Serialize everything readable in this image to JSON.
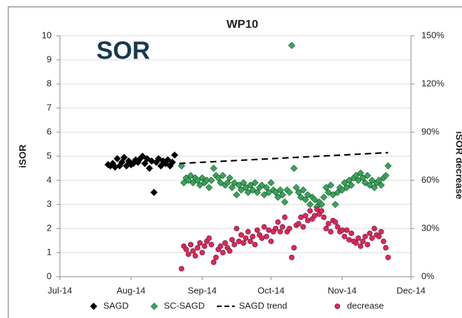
{
  "chart_data": {
    "type": "scatter",
    "title": "WP10",
    "annotation": "SOR",
    "y_label": "iSOR",
    "y2_label": "iSOR decrease",
    "xlim": [
      0,
      153
    ],
    "xticks": [
      {
        "value": 0,
        "label": "Jul-14"
      },
      {
        "value": 31,
        "label": "Aug-14"
      },
      {
        "value": 62,
        "label": "Sep-14"
      },
      {
        "value": 92,
        "label": "Oct-14"
      },
      {
        "value": 123,
        "label": "Nov-14"
      },
      {
        "value": 153,
        "label": "Dec-14"
      }
    ],
    "ylim": [
      0,
      10
    ],
    "yticks": [
      0,
      1,
      2,
      3,
      4,
      5,
      6,
      7,
      8,
      9,
      10
    ],
    "y2lim": [
      0,
      150
    ],
    "y2ticks": [
      {
        "value": 0,
        "label": "0%"
      },
      {
        "value": 30,
        "label": "30%"
      },
      {
        "value": 60,
        "label": "60%"
      },
      {
        "value": 90,
        "label": "90%"
      },
      {
        "value": 120,
        "label": "120%"
      },
      {
        "value": 150,
        "label": "150%"
      }
    ],
    "grid": true,
    "legend": "bottom",
    "series": [
      {
        "name": "SAGD",
        "color": "#000000",
        "marker": "diamond",
        "x": [
          21,
          22,
          23,
          24,
          25,
          26,
          27,
          28,
          29,
          30,
          31,
          32,
          33,
          34,
          35,
          36,
          37,
          38,
          39,
          40,
          41,
          42,
          43,
          44,
          45,
          46,
          47,
          48,
          49,
          50
        ],
        "values": [
          4.65,
          4.6,
          4.7,
          4.55,
          4.9,
          4.6,
          4.75,
          4.95,
          4.6,
          4.8,
          4.65,
          4.7,
          4.85,
          4.75,
          4.9,
          5.0,
          4.7,
          4.9,
          4.5,
          4.8,
          3.5,
          4.75,
          4.9,
          4.6,
          4.8,
          4.7,
          4.85,
          4.6,
          4.75,
          5.05
        ]
      },
      {
        "name": "SC-SAGD",
        "color": "#3aa35a",
        "marker": "diamond",
        "x": [
          53,
          54,
          55,
          56,
          57,
          58,
          59,
          60,
          61,
          62,
          63,
          64,
          65,
          66,
          67,
          68,
          69,
          70,
          71,
          72,
          73,
          74,
          75,
          76,
          77,
          78,
          79,
          80,
          81,
          82,
          83,
          84,
          85,
          86,
          87,
          88,
          89,
          90,
          91,
          92,
          93,
          94,
          95,
          96,
          97,
          98,
          99,
          100,
          101,
          102,
          103,
          104,
          105,
          106,
          107,
          108,
          109,
          110,
          111,
          112,
          113,
          114,
          115,
          116,
          117,
          118,
          119,
          120,
          121,
          122,
          123,
          124,
          125,
          126,
          127,
          128,
          129,
          130,
          131,
          132,
          133,
          134,
          135,
          136,
          137,
          138,
          139,
          140,
          141,
          142,
          143
        ],
        "values": [
          4.6,
          3.9,
          4.1,
          4.0,
          4.2,
          3.9,
          4.1,
          4.0,
          3.8,
          4.1,
          3.9,
          4.0,
          3.7,
          4.0,
          4.5,
          4.2,
          4.1,
          3.9,
          4.2,
          3.8,
          3.9,
          4.1,
          3.7,
          3.9,
          3.4,
          3.8,
          3.6,
          3.9,
          3.7,
          3.5,
          3.8,
          3.6,
          3.9,
          3.5,
          3.7,
          3.8,
          3.4,
          3.7,
          3.5,
          3.9,
          3.6,
          3.5,
          3.3,
          3.6,
          3.4,
          3.1,
          3.6,
          3.5,
          9.6,
          4.5,
          3.7,
          3.5,
          3.3,
          3.6,
          3.2,
          3.4,
          3.0,
          3.3,
          3.2,
          2.9,
          3.1,
          3.0,
          3.3,
          3.7,
          3.5,
          3.8,
          3.4,
          3.0,
          3.5,
          3.7,
          3.6,
          3.9,
          3.7,
          4.0,
          3.8,
          4.1,
          4.2,
          4.0,
          4.3,
          4.1,
          3.9,
          4.2,
          3.8,
          4.0,
          3.7,
          3.9,
          4.0,
          3.8,
          4.1,
          4.2,
          4.6
        ]
      },
      {
        "name": "SAGD trend",
        "color": "#000000",
        "marker": "dash",
        "x": [
          52,
          143
        ],
        "values": [
          4.7,
          5.15
        ]
      },
      {
        "name": "decrease",
        "color": "#e0284c",
        "marker": "circle",
        "axis": "y2",
        "x": [
          53,
          54,
          55,
          56,
          57,
          58,
          59,
          60,
          61,
          62,
          63,
          64,
          65,
          66,
          67,
          68,
          69,
          70,
          71,
          72,
          73,
          74,
          75,
          76,
          77,
          78,
          79,
          80,
          81,
          82,
          83,
          84,
          85,
          86,
          87,
          88,
          89,
          90,
          91,
          92,
          93,
          94,
          95,
          96,
          97,
          98,
          99,
          100,
          101,
          102,
          103,
          104,
          105,
          106,
          107,
          108,
          109,
          110,
          111,
          112,
          113,
          114,
          115,
          116,
          117,
          118,
          119,
          120,
          121,
          122,
          123,
          124,
          125,
          126,
          127,
          128,
          129,
          130,
          131,
          132,
          133,
          134,
          135,
          136,
          137,
          138,
          139,
          140,
          141,
          142,
          143
        ],
        "values": [
          5,
          19,
          17,
          14,
          20,
          16,
          13,
          18,
          21,
          15,
          19,
          22,
          24,
          20,
          9,
          12,
          17,
          19,
          15,
          21,
          18,
          16,
          23,
          20,
          30,
          22,
          26,
          21,
          24,
          28,
          22,
          25,
          20,
          29,
          26,
          24,
          31,
          25,
          29,
          22,
          28,
          30,
          34,
          28,
          31,
          37,
          28,
          30,
          12,
          18,
          32,
          33,
          37,
          31,
          38,
          35,
          41,
          36,
          38,
          42,
          39,
          41,
          37,
          30,
          33,
          28,
          35,
          34,
          31,
          28,
          29,
          25,
          29,
          23,
          27,
          22,
          21,
          24,
          19,
          22,
          25,
          20,
          27,
          24,
          30,
          26,
          25,
          28,
          22,
          18,
          12
        ]
      }
    ]
  }
}
